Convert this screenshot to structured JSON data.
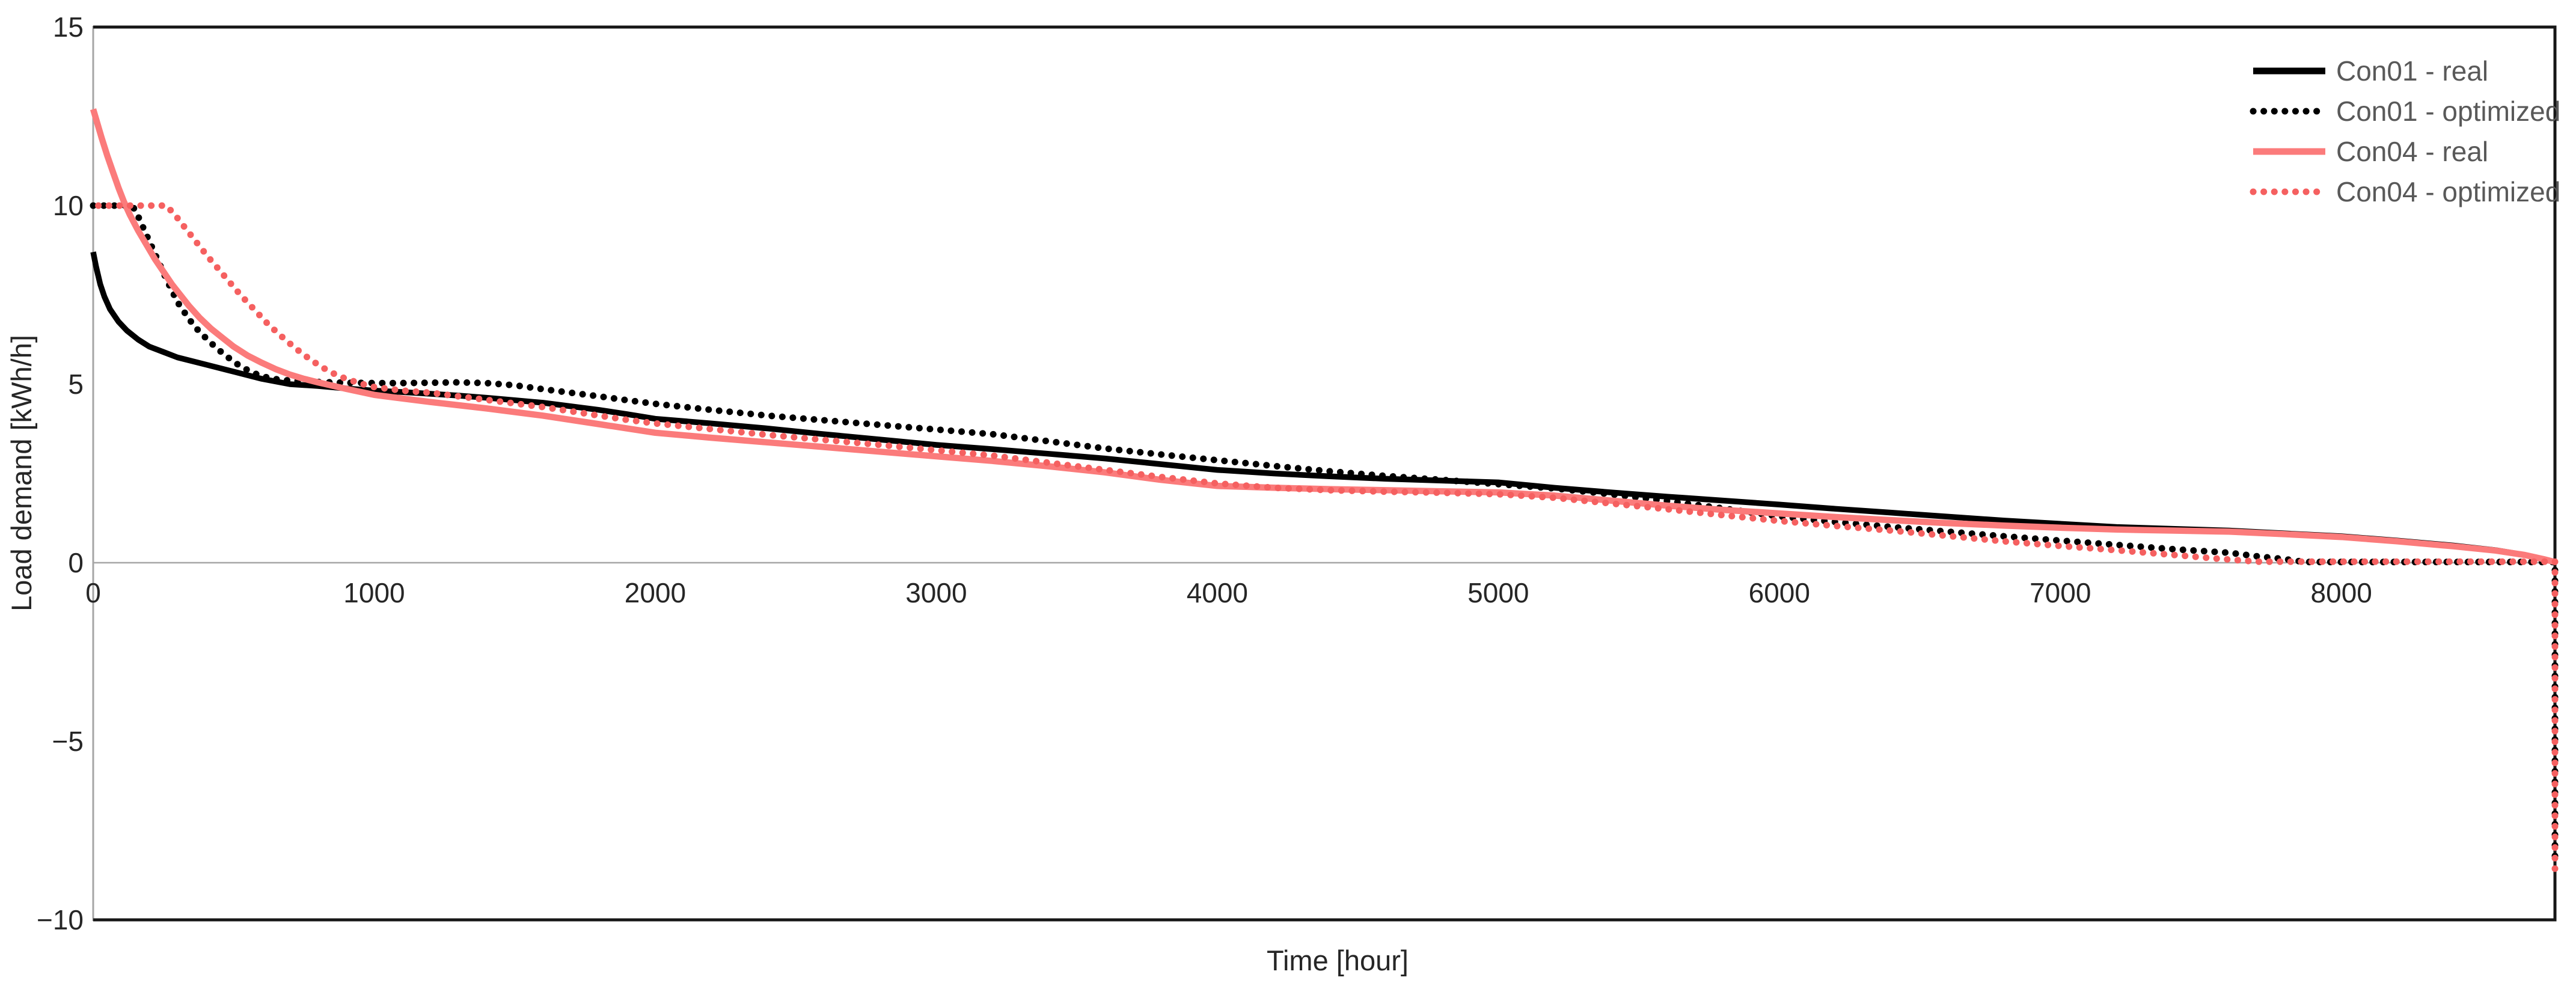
{
  "chart_data": {
    "type": "line",
    "title": "",
    "xlabel": "Time [hour]",
    "ylabel": "Load demand [kWh/h]",
    "xlim": [
      0,
      8760
    ],
    "ylim": [
      -10,
      15
    ],
    "xticks": [
      0,
      1000,
      2000,
      3000,
      4000,
      5000,
      6000,
      7000,
      8000
    ],
    "xtick_labels": [
      "0",
      "1000",
      "2000",
      "3000",
      "4000",
      "5000",
      "6000",
      "7000",
      "8000"
    ],
    "yticks": [
      15,
      10,
      5,
      0,
      -5,
      -10
    ],
    "ytick_labels": [
      "15",
      "10",
      "5",
      "0",
      "−5",
      "−10"
    ],
    "grid": "zero-line-only",
    "legend_position": "inside-top-right",
    "series": [
      {
        "name": "Con01 - real",
        "color": "#000000",
        "style": "solid",
        "points": [
          [
            0,
            8.7
          ],
          [
            10,
            8.3
          ],
          [
            25,
            7.8
          ],
          [
            40,
            7.45
          ],
          [
            60,
            7.1
          ],
          [
            90,
            6.75
          ],
          [
            120,
            6.5
          ],
          [
            160,
            6.25
          ],
          [
            200,
            6.05
          ],
          [
            250,
            5.9
          ],
          [
            300,
            5.75
          ],
          [
            400,
            5.55
          ],
          [
            500,
            5.35
          ],
          [
            600,
            5.15
          ],
          [
            700,
            5.0
          ],
          [
            800,
            4.95
          ],
          [
            900,
            4.88
          ],
          [
            1000,
            4.82
          ],
          [
            1100,
            4.78
          ],
          [
            1200,
            4.73
          ],
          [
            1300,
            4.68
          ],
          [
            1400,
            4.62
          ],
          [
            1500,
            4.55
          ],
          [
            1600,
            4.48
          ],
          [
            1700,
            4.38
          ],
          [
            1800,
            4.28
          ],
          [
            1900,
            4.16
          ],
          [
            2000,
            4.03
          ],
          [
            2200,
            3.9
          ],
          [
            2400,
            3.76
          ],
          [
            2600,
            3.6
          ],
          [
            2800,
            3.45
          ],
          [
            3000,
            3.3
          ],
          [
            3200,
            3.18
          ],
          [
            3400,
            3.05
          ],
          [
            3600,
            2.92
          ],
          [
            3800,
            2.76
          ],
          [
            4000,
            2.6
          ],
          [
            4200,
            2.5
          ],
          [
            4400,
            2.42
          ],
          [
            4600,
            2.35
          ],
          [
            4800,
            2.3
          ],
          [
            5000,
            2.25
          ],
          [
            5200,
            2.1
          ],
          [
            5400,
            1.97
          ],
          [
            5600,
            1.85
          ],
          [
            5800,
            1.74
          ],
          [
            6000,
            1.63
          ],
          [
            6200,
            1.51
          ],
          [
            6400,
            1.4
          ],
          [
            6600,
            1.29
          ],
          [
            6800,
            1.18
          ],
          [
            7000,
            1.09
          ],
          [
            7200,
            1.0
          ],
          [
            7400,
            0.95
          ],
          [
            7600,
            0.9
          ],
          [
            7800,
            0.82
          ],
          [
            8000,
            0.74
          ],
          [
            8200,
            0.62
          ],
          [
            8400,
            0.48
          ],
          [
            8550,
            0.35
          ],
          [
            8650,
            0.22
          ],
          [
            8720,
            0.1
          ],
          [
            8760,
            0.02
          ]
        ]
      },
      {
        "name": "Con01 - optimized",
        "color": "#000000",
        "style": "dotted",
        "points": [
          [
            0,
            10
          ],
          [
            140,
            10
          ],
          [
            160,
            9.7
          ],
          [
            180,
            9.35
          ],
          [
            200,
            9.0
          ],
          [
            220,
            8.65
          ],
          [
            240,
            8.3
          ],
          [
            260,
            7.95
          ],
          [
            280,
            7.62
          ],
          [
            300,
            7.3
          ],
          [
            330,
            6.95
          ],
          [
            360,
            6.62
          ],
          [
            400,
            6.3
          ],
          [
            440,
            6.0
          ],
          [
            480,
            5.75
          ],
          [
            520,
            5.52
          ],
          [
            560,
            5.35
          ],
          [
            600,
            5.22
          ],
          [
            650,
            5.14
          ],
          [
            700,
            5.1
          ],
          [
            800,
            5.06
          ],
          [
            900,
            5.04
          ],
          [
            1000,
            5.03
          ],
          [
            1100,
            5.03
          ],
          [
            1200,
            5.04
          ],
          [
            1300,
            5.05
          ],
          [
            1400,
            5.03
          ],
          [
            1500,
            4.97
          ],
          [
            1600,
            4.86
          ],
          [
            1700,
            4.76
          ],
          [
            1800,
            4.66
          ],
          [
            1900,
            4.55
          ],
          [
            2000,
            4.45
          ],
          [
            2200,
            4.28
          ],
          [
            2400,
            4.12
          ],
          [
            2600,
            3.99
          ],
          [
            2800,
            3.86
          ],
          [
            3000,
            3.73
          ],
          [
            3200,
            3.6
          ],
          [
            3400,
            3.4
          ],
          [
            3600,
            3.2
          ],
          [
            3800,
            3.03
          ],
          [
            4000,
            2.87
          ],
          [
            4200,
            2.71
          ],
          [
            4400,
            2.56
          ],
          [
            4600,
            2.43
          ],
          [
            4800,
            2.32
          ],
          [
            5000,
            2.2
          ],
          [
            5200,
            2.08
          ],
          [
            5400,
            1.92
          ],
          [
            5600,
            1.73
          ],
          [
            5800,
            1.52
          ],
          [
            6000,
            1.3
          ],
          [
            6200,
            1.14
          ],
          [
            6400,
            1.0
          ],
          [
            6600,
            0.87
          ],
          [
            6800,
            0.74
          ],
          [
            7000,
            0.62
          ],
          [
            7200,
            0.5
          ],
          [
            7400,
            0.38
          ],
          [
            7600,
            0.28
          ],
          [
            7700,
            0.18
          ],
          [
            7800,
            0.1
          ],
          [
            7870,
            0.02
          ],
          [
            8760,
            0.02
          ],
          [
            8760,
            -8.5
          ]
        ]
      },
      {
        "name": "Con04 - real",
        "color": "#FB7B7B",
        "style": "solid",
        "points": [
          [
            0,
            12.7
          ],
          [
            15,
            12.3
          ],
          [
            30,
            11.9
          ],
          [
            50,
            11.4
          ],
          [
            70,
            10.95
          ],
          [
            90,
            10.5
          ],
          [
            110,
            10.1
          ],
          [
            130,
            9.75
          ],
          [
            160,
            9.3
          ],
          [
            190,
            8.9
          ],
          [
            220,
            8.5
          ],
          [
            250,
            8.15
          ],
          [
            280,
            7.8
          ],
          [
            310,
            7.5
          ],
          [
            340,
            7.2
          ],
          [
            380,
            6.85
          ],
          [
            420,
            6.55
          ],
          [
            460,
            6.3
          ],
          [
            500,
            6.05
          ],
          [
            550,
            5.8
          ],
          [
            600,
            5.6
          ],
          [
            650,
            5.42
          ],
          [
            700,
            5.27
          ],
          [
            750,
            5.15
          ],
          [
            800,
            5.05
          ],
          [
            900,
            4.87
          ],
          [
            1000,
            4.7
          ],
          [
            1100,
            4.6
          ],
          [
            1200,
            4.5
          ],
          [
            1400,
            4.32
          ],
          [
            1600,
            4.12
          ],
          [
            1800,
            3.88
          ],
          [
            2000,
            3.64
          ],
          [
            2200,
            3.5
          ],
          [
            2400,
            3.37
          ],
          [
            2600,
            3.24
          ],
          [
            2800,
            3.11
          ],
          [
            3000,
            2.98
          ],
          [
            3200,
            2.85
          ],
          [
            3400,
            2.7
          ],
          [
            3600,
            2.53
          ],
          [
            3800,
            2.32
          ],
          [
            4000,
            2.15
          ],
          [
            4200,
            2.1
          ],
          [
            4400,
            2.06
          ],
          [
            4600,
            2.03
          ],
          [
            4800,
            2.0
          ],
          [
            5000,
            1.97
          ],
          [
            5200,
            1.88
          ],
          [
            5400,
            1.74
          ],
          [
            5600,
            1.6
          ],
          [
            5800,
            1.48
          ],
          [
            6000,
            1.38
          ],
          [
            6200,
            1.28
          ],
          [
            6400,
            1.19
          ],
          [
            6600,
            1.11
          ],
          [
            6800,
            1.04
          ],
          [
            7000,
            0.98
          ],
          [
            7200,
            0.93
          ],
          [
            7400,
            0.9
          ],
          [
            7600,
            0.87
          ],
          [
            7800,
            0.8
          ],
          [
            8000,
            0.72
          ],
          [
            8200,
            0.6
          ],
          [
            8400,
            0.46
          ],
          [
            8550,
            0.34
          ],
          [
            8650,
            0.22
          ],
          [
            8720,
            0.1
          ],
          [
            8760,
            0.02
          ]
        ]
      },
      {
        "name": "Con04 - optimized",
        "color": "#F56060",
        "style": "dotted",
        "points": [
          [
            0,
            10
          ],
          [
            260,
            10
          ],
          [
            290,
            9.75
          ],
          [
            320,
            9.45
          ],
          [
            350,
            9.15
          ],
          [
            380,
            8.85
          ],
          [
            410,
            8.55
          ],
          [
            440,
            8.28
          ],
          [
            470,
            8.0
          ],
          [
            500,
            7.72
          ],
          [
            530,
            7.45
          ],
          [
            560,
            7.2
          ],
          [
            590,
            6.95
          ],
          [
            620,
            6.7
          ],
          [
            650,
            6.48
          ],
          [
            680,
            6.27
          ],
          [
            710,
            6.07
          ],
          [
            740,
            5.88
          ],
          [
            780,
            5.65
          ],
          [
            820,
            5.45
          ],
          [
            860,
            5.28
          ],
          [
            900,
            5.15
          ],
          [
            950,
            5.02
          ],
          [
            1000,
            4.92
          ],
          [
            1100,
            4.82
          ],
          [
            1200,
            4.76
          ],
          [
            1300,
            4.66
          ],
          [
            1400,
            4.56
          ],
          [
            1500,
            4.46
          ],
          [
            1600,
            4.36
          ],
          [
            1700,
            4.24
          ],
          [
            1800,
            4.12
          ],
          [
            1900,
            4.0
          ],
          [
            2000,
            3.9
          ],
          [
            2200,
            3.74
          ],
          [
            2400,
            3.58
          ],
          [
            2600,
            3.44
          ],
          [
            2800,
            3.3
          ],
          [
            3000,
            3.15
          ],
          [
            3200,
            3.0
          ],
          [
            3400,
            2.8
          ],
          [
            3600,
            2.6
          ],
          [
            3800,
            2.4
          ],
          [
            4000,
            2.22
          ],
          [
            4200,
            2.1
          ],
          [
            4400,
            2.03
          ],
          [
            4600,
            1.99
          ],
          [
            4800,
            1.96
          ],
          [
            5000,
            1.92
          ],
          [
            5200,
            1.82
          ],
          [
            5400,
            1.66
          ],
          [
            5600,
            1.5
          ],
          [
            5800,
            1.33
          ],
          [
            6000,
            1.17
          ],
          [
            6200,
            1.03
          ],
          [
            6400,
            0.9
          ],
          [
            6600,
            0.75
          ],
          [
            6800,
            0.6
          ],
          [
            7000,
            0.47
          ],
          [
            7200,
            0.35
          ],
          [
            7400,
            0.22
          ],
          [
            7550,
            0.12
          ],
          [
            7700,
            0.03
          ],
          [
            8760,
            0.03
          ],
          [
            8760,
            -8.8
          ]
        ]
      }
    ]
  },
  "legend": {
    "items": [
      {
        "label": "Con01 - real",
        "swatch": "solid-black-line"
      },
      {
        "label": "Con01 - optimized",
        "swatch": "dotted-black-line"
      },
      {
        "label": "Con04 - real",
        "swatch": "solid-salmon-line"
      },
      {
        "label": "Con04 - optimized",
        "swatch": "dotted-salmon-line"
      }
    ],
    "text_color": "#595959"
  },
  "colors": {
    "background": "#ffffff",
    "plot_border": "#171717",
    "value_axis_line": "#A6A6A6",
    "zero_gridline": "#A6A6A6",
    "tick_label": "#262626",
    "axis_title": "#262626",
    "series_black": "#000000",
    "series_salmon_solid": "#FB7B7B",
    "series_salmon_dotted": "#F56060",
    "legend_text": "#595959"
  }
}
